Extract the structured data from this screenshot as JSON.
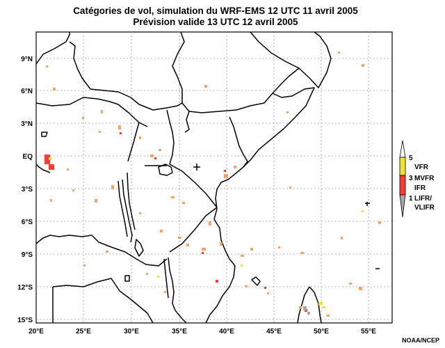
{
  "title": {
    "line1": "Catégories de vol, simulation du WRF-EMS 12 UTC 11 avril 2005",
    "line2": "Prévision valide 13 UTC 12 avril 2005"
  },
  "axes": {
    "lon_labels": [
      "20°E",
      "25°E",
      "30°E",
      "35°E",
      "40°E",
      "45°E",
      "50°E",
      "55°E"
    ],
    "lat_labels": [
      "9°N",
      "6°N",
      "3°N",
      "EQ",
      "3°S",
      "6°S",
      "9°S",
      "12°S",
      "15°S"
    ]
  },
  "legend": {
    "tick_5": "5",
    "vfr": "VFR",
    "tick_3": "3",
    "mvfr": "MVFR",
    "ifr": "IFR",
    "tick_1": "1",
    "lifr": "LIFR/",
    "vlifr": "VLIFR"
  },
  "credit": "NOAA/NCEP",
  "colors": {
    "vfr": "#f2e230",
    "mvfr": "#ff3b30",
    "ifr": "#ff3b30",
    "lifr": "#a8a8a8",
    "light_ifr": "#f5a05a"
  }
}
